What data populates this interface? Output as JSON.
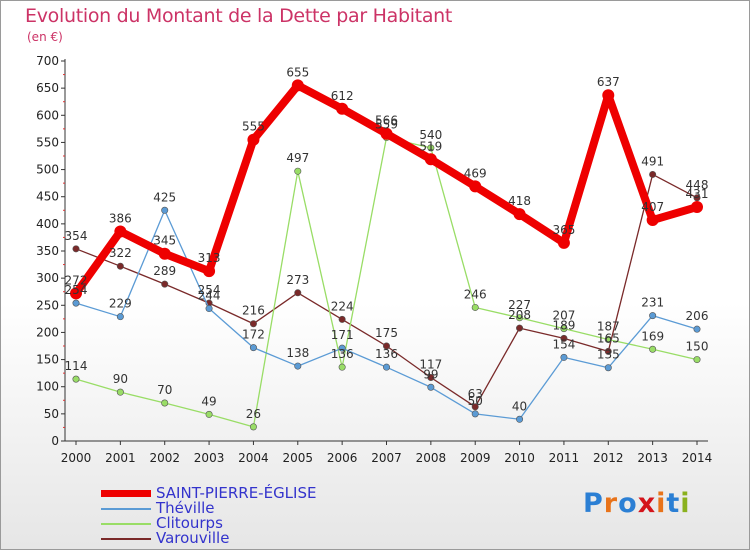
{
  "header": {
    "title": "Evolution du Montant de la Dette par Habitant",
    "unit": "(en €)"
  },
  "logo": {
    "text": "Proxiti",
    "colors": [
      "#2b7fd4",
      "#e8731a",
      "#2b7fd4",
      "#d4141b",
      "#e8731a",
      "#2b7fd4",
      "#8ab11e"
    ]
  },
  "chart_data": {
    "type": "line",
    "title": "Evolution du Montant de la Dette par Habitant",
    "ylabel": "(en €)",
    "xlabel": "",
    "x": [
      2000,
      2001,
      2002,
      2003,
      2004,
      2005,
      2006,
      2007,
      2008,
      2009,
      2010,
      2011,
      2012,
      2013,
      2014
    ],
    "ylim": [
      0,
      700
    ],
    "yticks": [
      0,
      50,
      100,
      150,
      200,
      250,
      300,
      350,
      400,
      450,
      500,
      550,
      600,
      650,
      700
    ],
    "grid": false,
    "legend_position": "bottom-left",
    "series": [
      {
        "name": "SAINT-PIERRE-ÉGLISE",
        "color": "#ee0000",
        "values": [
          272,
          386,
          345,
          313,
          555,
          655,
          612,
          566,
          519,
          469,
          418,
          365,
          637,
          407,
          431
        ]
      },
      {
        "name": "Théville",
        "color": "#5b9bd5",
        "values": [
          254,
          229,
          425,
          244,
          172,
          138,
          171,
          136,
          99,
          50,
          40,
          154,
          135,
          231,
          206
        ]
      },
      {
        "name": "Clitourps",
        "color": "#99dd66",
        "values": [
          114,
          90,
          70,
          49,
          26,
          497,
          136,
          559,
          540,
          246,
          227,
          207,
          187,
          169,
          150
        ]
      },
      {
        "name": "Varouville",
        "color": "#7a2a2a",
        "values": [
          354,
          322,
          289,
          254,
          216,
          273,
          224,
          175,
          117,
          63,
          208,
          189,
          165,
          491,
          448
        ]
      }
    ]
  }
}
